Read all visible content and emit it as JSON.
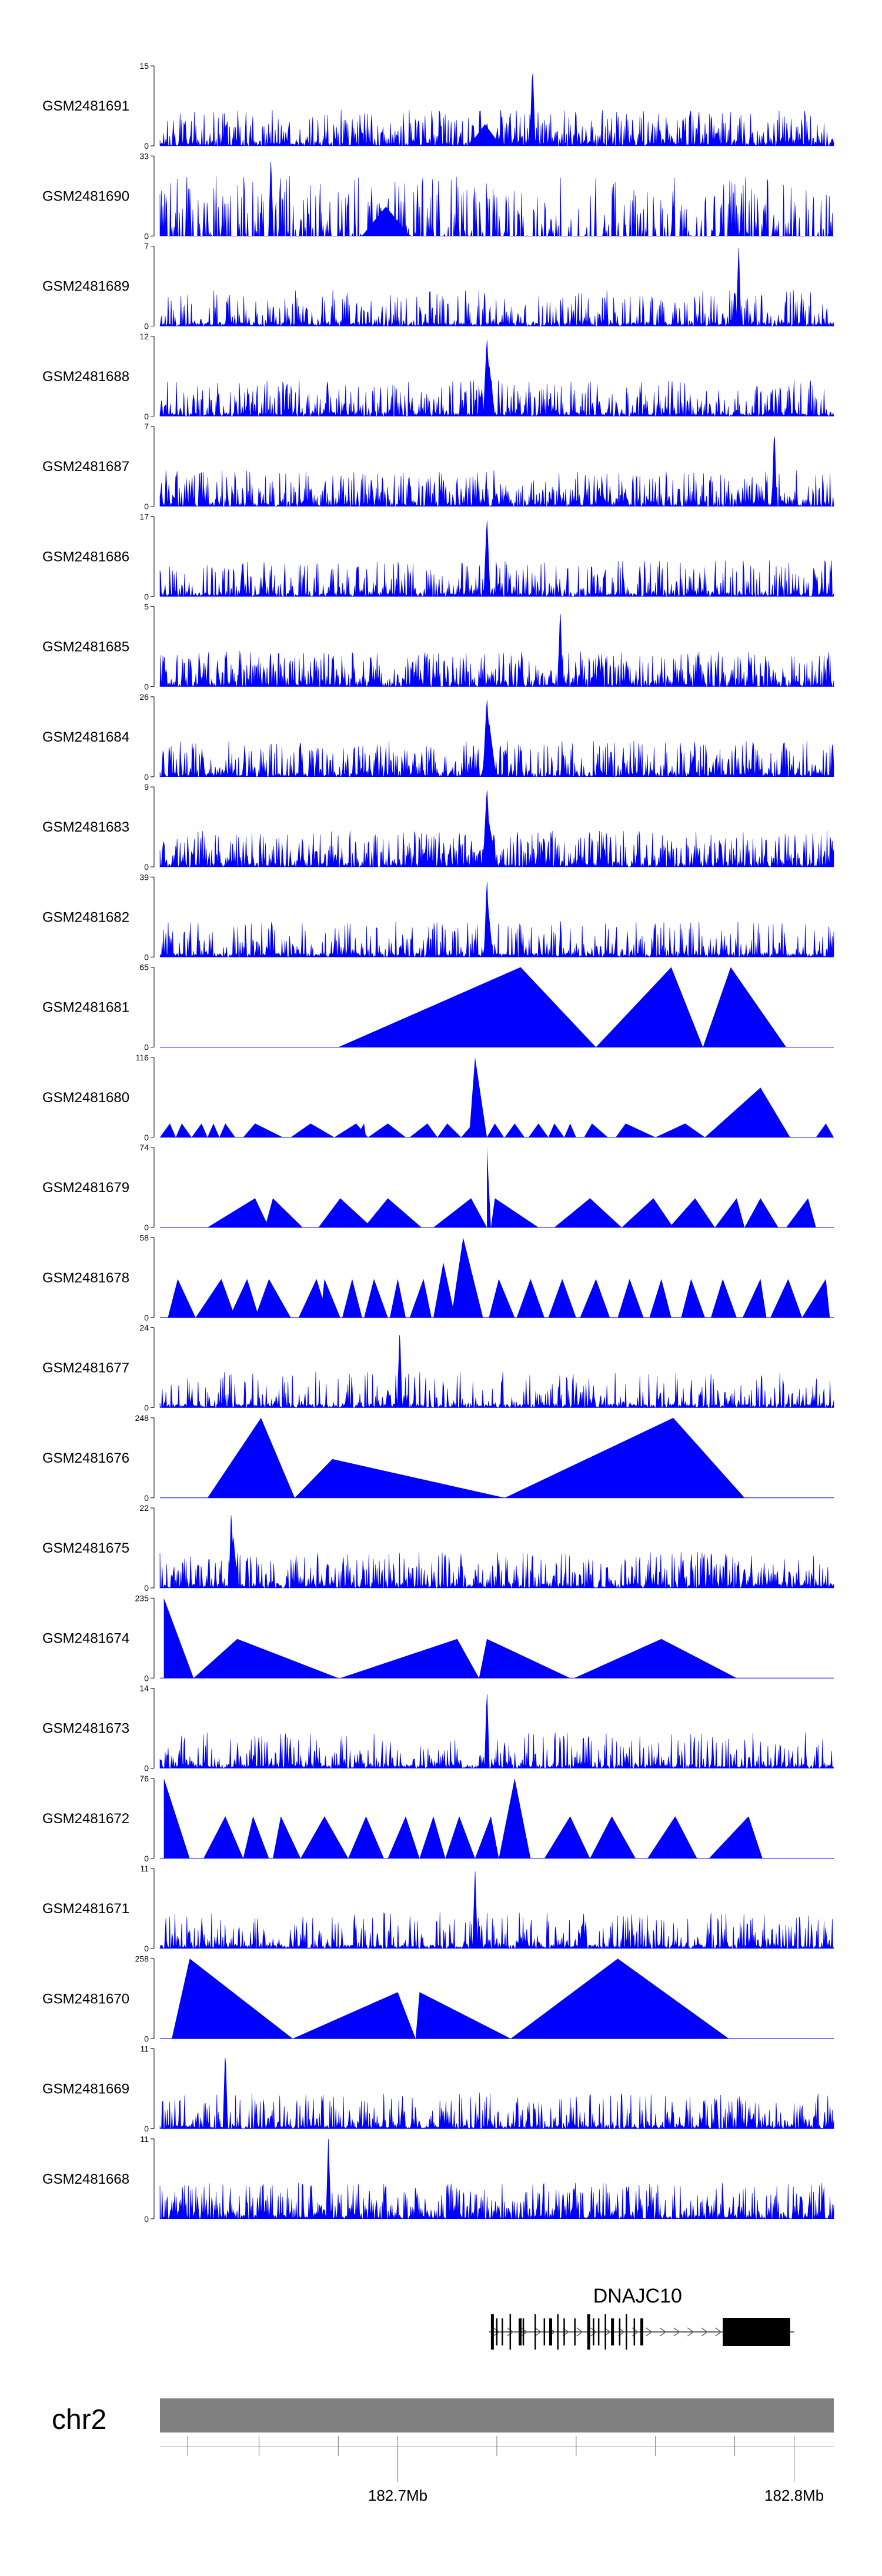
{
  "chart_data": {
    "type": "area",
    "title": "",
    "chromosome": "chr2",
    "x_range_mb": [
      182.64,
      182.81
    ],
    "genome_axis": {
      "tick_labels": [
        {
          "value": 182.7,
          "label": "182.7Mb"
        },
        {
          "value": 182.8,
          "label": "182.8Mb"
        }
      ],
      "minor_ticks_mb": [
        182.647,
        182.665,
        182.685,
        182.725,
        182.745,
        182.765,
        182.785
      ]
    },
    "gene": {
      "name": "DNAJC10",
      "start_mb": 182.723,
      "end_mb": 182.8,
      "strand": "+",
      "exons_mb": [
        182.7235,
        182.7248,
        182.7262,
        182.7282,
        182.7305,
        182.7315,
        182.7345,
        182.7368,
        182.7382,
        182.7402,
        182.7418,
        182.7445,
        182.7478,
        182.7492,
        182.7505,
        182.7522,
        182.7538,
        182.7558,
        182.7575,
        182.7595,
        182.7612
      ],
      "utr3_mb": [
        182.782,
        182.799
      ]
    },
    "color": "#0000ff",
    "tracks": [
      {
        "name": "GSM2481691",
        "ymax": 15,
        "style": "noise",
        "density": 0.85,
        "peaks": [
          [
            182.722,
            4,
            0.004
          ],
          [
            182.734,
            15,
            0.0007
          ],
          [
            182.7225,
            3,
            0.003
          ]
        ]
      },
      {
        "name": "GSM2481690",
        "ymax": 33,
        "style": "sparse",
        "density": 0.35,
        "peaks": [
          [
            182.668,
            33,
            0.0006
          ],
          [
            182.697,
            12,
            0.006
          ]
        ]
      },
      {
        "name": "GSM2481689",
        "ymax": 7,
        "style": "noise",
        "density": 0.55,
        "peaks": [
          [
            182.786,
            7,
            0.0006
          ]
        ]
      },
      {
        "name": "GSM2481688",
        "ymax": 12,
        "style": "noise",
        "density": 0.7,
        "peaks": [
          [
            182.7225,
            12,
            0.0009
          ],
          [
            182.723,
            8,
            0.0015
          ]
        ]
      },
      {
        "name": "GSM2481687",
        "ymax": 7,
        "style": "noise",
        "density": 0.9,
        "peaks": [
          [
            182.795,
            7,
            0.0006
          ]
        ]
      },
      {
        "name": "GSM2481686",
        "ymax": 17,
        "style": "noise",
        "density": 0.75,
        "peaks": [
          [
            182.7225,
            17,
            0.0008
          ]
        ]
      },
      {
        "name": "GSM2481685",
        "ymax": 5,
        "style": "noise",
        "density": 0.95,
        "peaks": [
          [
            182.741,
            5,
            0.0006
          ]
        ]
      },
      {
        "name": "GSM2481684",
        "ymax": 26,
        "style": "noise",
        "density": 0.8,
        "peaks": [
          [
            182.7225,
            26,
            0.001
          ],
          [
            182.723,
            18,
            0.0018
          ]
        ]
      },
      {
        "name": "GSM2481683",
        "ymax": 9,
        "style": "noise",
        "density": 0.85,
        "peaks": [
          [
            182.7225,
            9,
            0.001
          ],
          [
            182.723,
            5,
            0.002
          ]
        ]
      },
      {
        "name": "GSM2481682",
        "ymax": 39,
        "style": "noise",
        "density": 0.6,
        "peaks": [
          [
            182.7225,
            39,
            0.0007
          ],
          [
            182.7228,
            24,
            0.0012
          ]
        ]
      },
      {
        "name": "GSM2481681",
        "ymax": 65,
        "style": "triangles",
        "tri": [
          [
            182.685,
            182.731,
            182.75,
            65
          ],
          [
            182.75,
            182.769,
            182.777,
            65
          ],
          [
            182.777,
            182.784,
            182.798,
            65
          ]
        ]
      },
      {
        "name": "GSM2481680",
        "ymax": 116,
        "style": "triangles",
        "tri": [
          [
            182.64,
            182.6425,
            182.644,
            20
          ],
          [
            182.644,
            182.6455,
            182.648,
            20
          ],
          [
            182.648,
            182.6505,
            182.652,
            20
          ],
          [
            182.652,
            182.6535,
            182.655,
            20
          ],
          [
            182.655,
            182.6565,
            182.659,
            20
          ],
          [
            182.661,
            182.664,
            182.671,
            20
          ],
          [
            182.673,
            182.678,
            182.684,
            20
          ],
          [
            182.684,
            182.6895,
            182.6925,
            20
          ],
          [
            182.6895,
            182.6915,
            182.692,
            20
          ],
          [
            182.6925,
            182.6975,
            182.702,
            20
          ],
          [
            182.703,
            182.7075,
            182.71,
            20
          ],
          [
            182.71,
            182.7125,
            182.716,
            20
          ],
          [
            182.716,
            182.719,
            182.72,
            20
          ],
          [
            182.718,
            182.7195,
            182.7225,
            116
          ],
          [
            182.7225,
            182.7245,
            182.7268,
            20
          ],
          [
            182.727,
            182.7295,
            182.732,
            20
          ],
          [
            182.733,
            182.7355,
            182.738,
            20
          ],
          [
            182.738,
            182.7395,
            182.742,
            20
          ],
          [
            182.742,
            182.7435,
            182.745,
            20
          ],
          [
            182.747,
            182.749,
            182.753,
            20
          ],
          [
            182.755,
            182.7575,
            182.765,
            20
          ],
          [
            182.765,
            182.7725,
            182.7775,
            20
          ],
          [
            182.7775,
            182.7915,
            182.799,
            72
          ],
          [
            182.8055,
            182.808,
            182.81,
            20
          ]
        ]
      },
      {
        "name": "GSM2481679",
        "ymax": 74,
        "style": "triangles",
        "tri": [
          [
            182.652,
            182.664,
            182.6675,
            27
          ],
          [
            182.6665,
            182.6685,
            182.676,
            27
          ],
          [
            182.68,
            182.6855,
            182.6935,
            27
          ],
          [
            182.6915,
            182.6975,
            182.706,
            27
          ],
          [
            182.709,
            182.7185,
            182.7225,
            27
          ],
          [
            182.7225,
            182.7225,
            182.7235,
            74
          ],
          [
            182.7235,
            182.7245,
            182.7355,
            27
          ],
          [
            182.7395,
            182.7485,
            182.7565,
            27
          ],
          [
            182.7565,
            182.7645,
            182.7695,
            27
          ],
          [
            182.7685,
            182.775,
            182.78,
            27
          ],
          [
            182.78,
            182.7855,
            182.7875,
            27
          ],
          [
            182.7875,
            182.7915,
            182.796,
            27
          ],
          [
            182.798,
            182.8035,
            182.8055,
            27
          ]
        ]
      },
      {
        "name": "GSM2481678",
        "ymax": 58,
        "style": "triangles",
        "tri": [
          [
            182.642,
            182.6445,
            182.649,
            28
          ],
          [
            182.649,
            182.6555,
            182.659,
            28
          ],
          [
            182.6575,
            182.662,
            182.665,
            28
          ],
          [
            182.664,
            182.6675,
            182.673,
            28
          ],
          [
            182.675,
            182.6795,
            182.6825,
            28
          ],
          [
            182.6805,
            182.6815,
            182.6855,
            28
          ],
          [
            182.686,
            182.6885,
            182.691,
            28
          ],
          [
            182.6915,
            182.694,
            182.6975,
            28
          ],
          [
            182.698,
            182.7,
            182.702,
            28
          ],
          [
            182.703,
            182.7065,
            182.7085,
            28
          ],
          [
            182.709,
            182.7115,
            182.7145,
            40
          ],
          [
            182.7135,
            182.7165,
            182.7215,
            58
          ],
          [
            182.723,
            182.7255,
            182.7295,
            28
          ],
          [
            182.73,
            182.7335,
            182.737,
            28
          ],
          [
            182.738,
            182.7415,
            182.745,
            28
          ],
          [
            182.746,
            182.75,
            182.7535,
            28
          ],
          [
            182.7555,
            182.7585,
            182.762,
            28
          ],
          [
            182.7635,
            182.7665,
            182.769,
            28
          ],
          [
            182.7715,
            182.774,
            182.7775,
            28
          ],
          [
            182.779,
            182.782,
            182.7855,
            28
          ],
          [
            182.787,
            182.7915,
            182.793,
            28
          ],
          [
            182.794,
            182.7985,
            182.802,
            28
          ],
          [
            182.802,
            182.808,
            182.809,
            28
          ]
        ]
      },
      {
        "name": "GSM2481677",
        "ymax": 24,
        "style": "noise",
        "density": 0.55,
        "peaks": [
          [
            182.7005,
            24,
            0.0006
          ],
          [
            182.6975,
            6,
            0.0006
          ]
        ]
      },
      {
        "name": "GSM2481676",
        "ymax": 248,
        "style": "triangles",
        "tri": [
          [
            182.652,
            182.6655,
            182.674,
            248
          ],
          [
            182.674,
            182.6835,
            182.727,
            120
          ],
          [
            182.727,
            182.7695,
            182.7875,
            248
          ]
        ]
      },
      {
        "name": "GSM2481675",
        "ymax": 22,
        "style": "noise",
        "density": 0.75,
        "peaks": [
          [
            182.658,
            22,
            0.0006
          ],
          [
            182.6585,
            14,
            0.0012
          ]
        ]
      },
      {
        "name": "GSM2481674",
        "ymax": 235,
        "style": "triangles",
        "tri": [
          [
            182.641,
            182.641,
            182.6485,
            235
          ],
          [
            182.6485,
            182.6595,
            182.685,
            115
          ],
          [
            182.6605,
            182.6605,
            182.6625,
            60
          ],
          [
            182.6855,
            182.715,
            182.7205,
            115
          ],
          [
            182.7205,
            182.7225,
            182.7435,
            115
          ],
          [
            182.7445,
            182.7665,
            182.7855,
            115
          ]
        ]
      },
      {
        "name": "GSM2481673",
        "ymax": 14,
        "style": "noise",
        "density": 0.6,
        "peaks": [
          [
            182.7225,
            14,
            0.0006
          ]
        ]
      },
      {
        "name": "GSM2481672",
        "ymax": 76,
        "style": "triangles",
        "tri": [
          [
            182.641,
            182.641,
            182.6475,
            76
          ],
          [
            182.651,
            182.6565,
            182.661,
            40
          ],
          [
            182.661,
            182.6635,
            182.6675,
            40
          ],
          [
            182.6685,
            182.6705,
            182.6755,
            40
          ],
          [
            182.6755,
            182.6815,
            182.6875,
            40
          ],
          [
            182.6875,
            182.692,
            182.6965,
            40
          ],
          [
            182.6975,
            182.702,
            182.7055,
            40
          ],
          [
            182.7055,
            182.709,
            182.712,
            40
          ],
          [
            182.712,
            182.7155,
            182.7195,
            40
          ],
          [
            182.7195,
            182.7235,
            182.7255,
            40
          ],
          [
            182.7255,
            182.7295,
            182.7335,
            76
          ],
          [
            182.737,
            182.7435,
            182.7485,
            40
          ],
          [
            182.7485,
            182.754,
            182.76,
            40
          ],
          [
            182.763,
            182.77,
            182.7755,
            40
          ],
          [
            182.7785,
            182.7885,
            182.792,
            40
          ]
        ]
      },
      {
        "name": "GSM2481671",
        "ymax": 11,
        "style": "noise",
        "density": 0.55,
        "peaks": [
          [
            182.7195,
            11,
            0.0006
          ]
        ]
      },
      {
        "name": "GSM2481670",
        "ymax": 258,
        "style": "triangles",
        "tri": [
          [
            182.643,
            182.6475,
            182.6735,
            258
          ],
          [
            182.6735,
            182.7,
            182.7045,
            150
          ],
          [
            182.7045,
            182.7055,
            182.7285,
            150
          ],
          [
            182.7285,
            182.7555,
            182.7835,
            258
          ]
        ]
      },
      {
        "name": "GSM2481669",
        "ymax": 11,
        "style": "noise",
        "density": 0.7,
        "peaks": [
          [
            182.6565,
            11,
            0.0006
          ]
        ]
      },
      {
        "name": "GSM2481668",
        "ymax": 11,
        "style": "noise",
        "density": 0.85,
        "peaks": [
          [
            182.6825,
            11,
            0.0006
          ]
        ]
      }
    ]
  }
}
